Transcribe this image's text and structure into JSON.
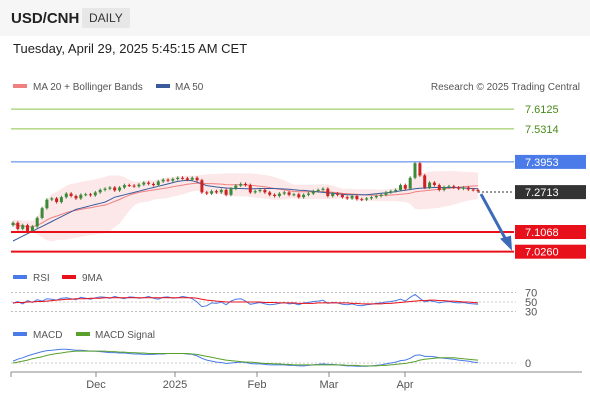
{
  "header": {
    "symbol": "USD/CNH",
    "period": "DAILY",
    "datetime": "Tuesday, April 29, 2025 5:45:15 AM CET"
  },
  "colors": {
    "bollinger": "#f08080",
    "ma50": "#3a5a9c",
    "candle_up": "#3a8a3a",
    "candle_down": "#cc2222",
    "resistance": "#8bc34a",
    "pivot": "#4a7be8",
    "support": "#e8101a",
    "rsi": "#4a7be8",
    "rsi_ma": "#e8101a",
    "macd": "#4a7be8",
    "macd_signal": "#5aa02c",
    "current_price": "#333333",
    "forecast_arrow": "#3a6ab8"
  },
  "chart_data": [
    {
      "type": "candlestick",
      "legend": [
        "MA 20 + Bollinger Bands",
        "MA 50"
      ],
      "watermark": "Research © 2025 Trading Central",
      "ylim": [
        7.0,
        7.65
      ],
      "x_ticks": [
        "Dec",
        "2025",
        "Feb",
        "Mar",
        "Apr"
      ],
      "levels": [
        {
          "label": "7.6125",
          "value": 7.6125,
          "kind": "resistance"
        },
        {
          "label": "7.5314",
          "value": 7.5314,
          "kind": "resistance"
        },
        {
          "label": "7.3953",
          "value": 7.3953,
          "kind": "pivot"
        },
        {
          "label": "7.2713",
          "value": 7.2713,
          "kind": "current"
        },
        {
          "label": "7.1068",
          "value": 7.1068,
          "kind": "support"
        },
        {
          "label": "7.0260",
          "value": 7.026,
          "kind": "support"
        }
      ],
      "close": [
        7.145,
        7.12,
        7.135,
        7.11,
        7.13,
        7.165,
        7.205,
        7.24,
        7.245,
        7.23,
        7.25,
        7.265,
        7.255,
        7.245,
        7.26,
        7.262,
        7.258,
        7.27,
        7.28,
        7.285,
        7.29,
        7.278,
        7.29,
        7.3,
        7.298,
        7.295,
        7.302,
        7.31,
        7.305,
        7.3,
        7.315,
        7.322,
        7.318,
        7.325,
        7.33,
        7.328,
        7.322,
        7.33,
        7.32,
        7.27,
        7.265,
        7.275,
        7.27,
        7.28,
        7.26,
        7.285,
        7.298,
        7.305,
        7.3,
        7.27,
        7.275,
        7.28,
        7.27,
        7.26,
        7.255,
        7.265,
        7.27,
        7.26,
        7.262,
        7.25,
        7.26,
        7.265,
        7.275,
        7.28,
        7.285,
        7.255,
        7.265,
        7.26,
        7.25,
        7.245,
        7.255,
        7.242,
        7.24,
        7.245,
        7.25,
        7.255,
        7.26,
        7.27,
        7.275,
        7.28,
        7.3,
        7.285,
        7.33,
        7.39,
        7.34,
        7.29,
        7.31,
        7.3,
        7.28,
        7.292,
        7.295,
        7.29,
        7.285,
        7.29,
        7.282,
        7.28,
        7.275
      ],
      "ma50": [
        7.07,
        7.08,
        7.09,
        7.1,
        7.11,
        7.12,
        7.13,
        7.14,
        7.15,
        7.16,
        7.17,
        7.18,
        7.19,
        7.2,
        7.205,
        7.21,
        7.215,
        7.22,
        7.225,
        7.23,
        7.24,
        7.25,
        7.255,
        7.26,
        7.265,
        7.27,
        7.275,
        7.28,
        7.285,
        7.29,
        7.295,
        7.3,
        7.305,
        7.31,
        7.315,
        7.318,
        7.32,
        7.318,
        7.312,
        7.305,
        7.298,
        7.295,
        7.292,
        7.29,
        7.288,
        7.287,
        7.286,
        7.286,
        7.285,
        7.285,
        7.285,
        7.286,
        7.286,
        7.286,
        7.286,
        7.285,
        7.284,
        7.283,
        7.281,
        7.279,
        7.278,
        7.276,
        7.274,
        7.272,
        7.27,
        7.268,
        7.266,
        7.264,
        7.262,
        7.26,
        7.26,
        7.26,
        7.26,
        7.26,
        7.262,
        7.264,
        7.266,
        7.268,
        7.27,
        7.273,
        7.276,
        7.279,
        7.282,
        7.285,
        7.287,
        7.288,
        7.289,
        7.29,
        7.29,
        7.29,
        7.29,
        7.29,
        7.289,
        7.288,
        7.287,
        7.286,
        7.285
      ]
    },
    {
      "type": "line",
      "legend": [
        "RSI",
        "9MA"
      ],
      "ylim": [
        20,
        80
      ],
      "y_ticks": [
        70,
        50,
        30
      ],
      "series": [
        {
          "name": "RSI",
          "values": [
            47,
            51,
            46,
            53,
            49,
            55,
            52,
            57,
            56,
            54,
            58,
            59,
            57,
            55,
            60,
            58,
            56,
            59,
            61,
            60,
            58,
            62,
            59,
            57,
            61,
            60,
            58,
            59,
            62,
            58,
            56,
            60,
            61,
            58,
            59,
            62,
            60,
            57,
            50,
            40,
            42,
            48,
            47,
            50,
            44,
            52,
            56,
            57,
            52,
            45,
            47,
            49,
            46,
            44,
            45,
            47,
            49,
            46,
            47,
            44,
            48,
            49,
            51,
            52,
            54,
            47,
            49,
            48,
            45,
            44,
            46,
            43,
            42,
            44,
            45,
            47,
            48,
            50,
            51,
            53,
            56,
            52,
            60,
            66,
            58,
            50,
            53,
            51,
            48,
            50,
            51,
            49,
            48,
            49,
            47,
            46,
            45
          ]
        },
        {
          "name": "9MA",
          "values": [
            48,
            49,
            49,
            50,
            50,
            51,
            51,
            52,
            53,
            54,
            55,
            56,
            56,
            57,
            57,
            57,
            58,
            58,
            58,
            59,
            59,
            59,
            59,
            59,
            59,
            59,
            59,
            59,
            59,
            59,
            59,
            59,
            59,
            59,
            59,
            59,
            59,
            59,
            58,
            56,
            54,
            53,
            52,
            51,
            50,
            50,
            50,
            50,
            50,
            50,
            50,
            50,
            49,
            49,
            49,
            48,
            48,
            48,
            48,
            47,
            47,
            47,
            47,
            48,
            48,
            48,
            48,
            48,
            48,
            48,
            47,
            47,
            46,
            46,
            46,
            46,
            46,
            47,
            47,
            48,
            49,
            50,
            51,
            52,
            53,
            53,
            54,
            54,
            53,
            53,
            52,
            52,
            51,
            50,
            50,
            49,
            48
          ]
        }
      ]
    },
    {
      "type": "line",
      "legend": [
        "MACD",
        "MACD Signal"
      ],
      "ylim": [
        -0.04,
        0.04
      ],
      "y_ticks": [
        0
      ],
      "series": [
        {
          "name": "MACD",
          "values": [
            0.004,
            0.008,
            0.011,
            0.015,
            0.018,
            0.021,
            0.024,
            0.026,
            0.027,
            0.028,
            0.029,
            0.029,
            0.028,
            0.027,
            0.027,
            0.026,
            0.025,
            0.025,
            0.024,
            0.023,
            0.022,
            0.022,
            0.021,
            0.021,
            0.02,
            0.019,
            0.019,
            0.018,
            0.018,
            0.018,
            0.019,
            0.019,
            0.02,
            0.02,
            0.02,
            0.02,
            0.019,
            0.018,
            0.015,
            0.01,
            0.006,
            0.004,
            0.002,
            0.001,
            -0.001,
            0.0,
            0.001,
            0.002,
            0.001,
            -0.001,
            -0.002,
            -0.002,
            -0.003,
            -0.004,
            -0.004,
            -0.004,
            -0.004,
            -0.005,
            -0.005,
            -0.006,
            -0.006,
            -0.005,
            -0.004,
            -0.003,
            -0.002,
            -0.003,
            -0.003,
            -0.004,
            -0.005,
            -0.006,
            -0.006,
            -0.007,
            -0.007,
            -0.007,
            -0.006,
            -0.005,
            -0.004,
            -0.002,
            0.0,
            0.002,
            0.005,
            0.006,
            0.01,
            0.016,
            0.017,
            0.014,
            0.014,
            0.013,
            0.011,
            0.01,
            0.009,
            0.008,
            0.006,
            0.005,
            0.004,
            0.002,
            0.001
          ]
        },
        {
          "name": "MACD Signal",
          "values": [
            0.0,
            0.002,
            0.004,
            0.006,
            0.009,
            0.011,
            0.013,
            0.016,
            0.018,
            0.02,
            0.021,
            0.023,
            0.024,
            0.025,
            0.025,
            0.025,
            0.025,
            0.025,
            0.025,
            0.025,
            0.024,
            0.024,
            0.023,
            0.023,
            0.022,
            0.022,
            0.021,
            0.021,
            0.02,
            0.02,
            0.02,
            0.02,
            0.02,
            0.02,
            0.02,
            0.02,
            0.02,
            0.019,
            0.018,
            0.016,
            0.014,
            0.012,
            0.01,
            0.008,
            0.006,
            0.005,
            0.004,
            0.003,
            0.002,
            0.002,
            0.001,
            0.0,
            -0.001,
            -0.001,
            -0.002,
            -0.002,
            -0.003,
            -0.003,
            -0.004,
            -0.004,
            -0.004,
            -0.004,
            -0.004,
            -0.004,
            -0.004,
            -0.004,
            -0.004,
            -0.004,
            -0.004,
            -0.005,
            -0.005,
            -0.005,
            -0.006,
            -0.006,
            -0.006,
            -0.006,
            -0.005,
            -0.005,
            -0.004,
            -0.003,
            -0.002,
            -0.001,
            0.001,
            0.003,
            0.006,
            0.008,
            0.009,
            0.01,
            0.011,
            0.011,
            0.011,
            0.011,
            0.01,
            0.009,
            0.008,
            0.007,
            0.006
          ]
        }
      ]
    }
  ]
}
